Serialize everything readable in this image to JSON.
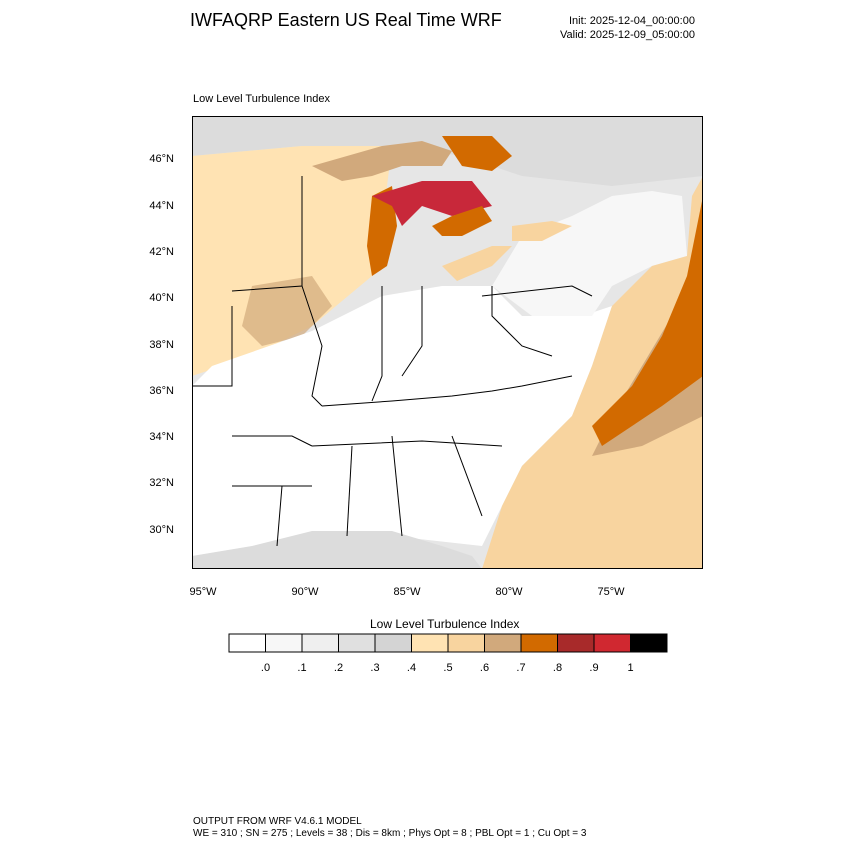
{
  "header": {
    "title": "IWFAQRP Eastern US Real Time WRF",
    "init": "Init: 2025-12-04_00:00:00",
    "valid": "Valid: 2025-12-09_05:00:00"
  },
  "map": {
    "subtitle": "Low Level Turbulence Index",
    "lat_labels": [
      "46°N",
      "44°N",
      "42°N",
      "40°N",
      "38°N",
      "36°N",
      "34°N",
      "32°N",
      "30°N"
    ],
    "lon_labels": [
      "95°W",
      "90°W",
      "85°W",
      "80°W",
      "75°W"
    ],
    "colors": {
      "ocean": "#d8b892",
      "land_low": "#ffffff",
      "gray": "#e0e0e0",
      "tan_light": "#ffe3b3",
      "tan": "#f8d49f",
      "tan_dark": "#d1a97c",
      "orange": "#d26a00",
      "red": "#c8283a",
      "dark_red": "#a82a2a"
    }
  },
  "colorbar": {
    "title": "Low Level Turbulence Index",
    "colors": [
      "#ffffff",
      "#f7f7f7",
      "#efefef",
      "#e0e0e0",
      "#d4d4d4",
      "#ffe3b3",
      "#f8d49f",
      "#d1a97c",
      "#d26a00",
      "#a82a2a",
      "#d02830",
      "#000000"
    ],
    "labels": [
      ".0",
      ".1",
      ".2",
      ".3",
      ".4",
      ".5",
      ".6",
      ".7",
      ".8",
      ".9",
      "1"
    ]
  },
  "footer": {
    "line1": "OUTPUT FROM WRF V4.6.1 MODEL",
    "line2": "WE = 310 ; SN = 275 ; Levels = 38 ; Dis = 8km ; Phys Opt = 8 ; PBL Opt = 1 ; Cu Opt = 3"
  }
}
